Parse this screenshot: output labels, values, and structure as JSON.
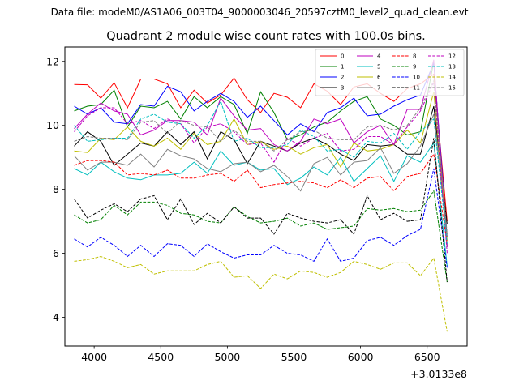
{
  "file_title": "Data file: modeM0/AS1A06_003T04_9000003046_20597cztM0_level2_quad_clean.evt",
  "chart_data": {
    "type": "line",
    "title": "Quadrant 2 module wise count rates with 100.0s bins.",
    "xlabel": "",
    "ylabel": "",
    "x_offset_label": "+3.0133e8",
    "xlim": [
      3780,
      6800
    ],
    "ylim": [
      3.1,
      12.45
    ],
    "xticks": [
      4000,
      4500,
      5000,
      5500,
      6000,
      6500
    ],
    "yticks": [
      4,
      6,
      8,
      10,
      12
    ],
    "x": [
      3850,
      3950,
      4050,
      4150,
      4250,
      4350,
      4450,
      4550,
      4650,
      4750,
      4850,
      4950,
      5050,
      5150,
      5250,
      5350,
      5450,
      5550,
      5650,
      5750,
      5850,
      5950,
      6050,
      6150,
      6250,
      6350,
      6450,
      6550,
      6650
    ],
    "series": [
      {
        "name": "0",
        "color": "#ff0000",
        "dash": "solid",
        "values": [
          11.28,
          11.27,
          10.85,
          11.33,
          10.55,
          11.45,
          11.45,
          11.3,
          10.55,
          11.1,
          10.7,
          10.95,
          11.48,
          10.8,
          10.4,
          11.0,
          10.88,
          10.55,
          11.3,
          11.07,
          10.65,
          11.2,
          11.3,
          11.0,
          10.75,
          11.15,
          11.3,
          11.6,
          7.0
        ]
      },
      {
        "name": "1",
        "color": "#008000",
        "dash": "solid",
        "values": [
          10.45,
          10.6,
          10.65,
          11.1,
          9.95,
          10.6,
          10.55,
          10.75,
          10.2,
          10.9,
          10.55,
          10.9,
          10.65,
          9.75,
          11.05,
          10.4,
          9.55,
          9.7,
          9.95,
          10.1,
          10.45,
          10.75,
          10.9,
          10.2,
          10.0,
          9.7,
          9.8,
          12.0,
          6.2
        ]
      },
      {
        "name": "2",
        "color": "#0000ff",
        "dash": "solid",
        "values": [
          10.6,
          10.35,
          10.55,
          10.1,
          10.05,
          10.65,
          10.6,
          11.22,
          11.05,
          10.45,
          10.75,
          11.0,
          10.75,
          10.25,
          10.6,
          10.15,
          9.7,
          10.05,
          9.8,
          10.4,
          10.55,
          10.85,
          10.3,
          10.35,
          10.6,
          10.8,
          10.95,
          11.95,
          6.5
        ]
      },
      {
        "name": "3",
        "color": "#000000",
        "dash": "solid",
        "values": [
          9.35,
          9.8,
          9.5,
          8.75,
          9.1,
          9.45,
          9.35,
          9.8,
          9.4,
          9.8,
          8.95,
          9.8,
          9.55,
          8.8,
          9.5,
          9.35,
          9.2,
          9.45,
          9.6,
          9.4,
          9.1,
          8.9,
          9.4,
          9.35,
          9.4,
          9.1,
          9.1,
          10.6,
          6.9
        ]
      },
      {
        "name": "4",
        "color": "#bf00bf",
        "dash": "solid",
        "values": [
          9.9,
          10.35,
          10.7,
          10.45,
          10.35,
          9.7,
          9.85,
          10.15,
          10.15,
          10.1,
          9.7,
          10.85,
          10.3,
          9.85,
          9.9,
          9.4,
          9.2,
          9.5,
          10.2,
          10.05,
          10.2,
          9.45,
          9.8,
          10.0,
          9.4,
          10.5,
          10.5,
          12.05,
          6.2
        ]
      },
      {
        "name": "5",
        "color": "#00bfbf",
        "dash": "solid",
        "values": [
          8.65,
          8.45,
          8.85,
          8.55,
          8.35,
          8.3,
          8.45,
          8.45,
          8.5,
          8.85,
          8.5,
          9.2,
          8.75,
          8.85,
          8.6,
          8.65,
          8.15,
          8.35,
          8.7,
          8.45,
          9.0,
          8.25,
          8.65,
          9.05,
          8.25,
          9.05,
          8.85,
          9.45,
          5.6
        ]
      },
      {
        "name": "6",
        "color": "#bfbf00",
        "dash": "solid",
        "values": [
          9.2,
          9.15,
          9.6,
          9.55,
          9.95,
          9.5,
          9.35,
          9.6,
          9.25,
          9.75,
          9.4,
          9.5,
          10.2,
          9.4,
          9.5,
          9.25,
          9.35,
          9.1,
          9.3,
          9.4,
          8.7,
          9.45,
          9.2,
          9.25,
          9.4,
          9.85,
          9.45,
          11.05,
          6.4
        ]
      },
      {
        "name": "7",
        "color": "#808080",
        "dash": "solid",
        "values": [
          9.05,
          8.6,
          8.85,
          8.85,
          8.75,
          9.1,
          8.7,
          9.25,
          9.05,
          8.95,
          8.65,
          8.55,
          8.8,
          8.85,
          8.55,
          8.75,
          8.4,
          7.95,
          8.8,
          9.0,
          8.45,
          8.85,
          8.9,
          9.3,
          8.5,
          8.8,
          9.35,
          10.35,
          6.5
        ]
      },
      {
        "name": "8",
        "color": "#ff0000",
        "dash": "dashed",
        "values": [
          8.75,
          8.9,
          8.9,
          8.85,
          8.45,
          8.5,
          8.45,
          8.6,
          8.35,
          8.35,
          8.45,
          8.5,
          8.25,
          8.6,
          8.05,
          8.15,
          8.2,
          8.25,
          8.2,
          8.05,
          8.3,
          8.05,
          8.35,
          8.4,
          7.95,
          8.4,
          8.5,
          9.1,
          6.3
        ]
      },
      {
        "name": "9",
        "color": "#008000",
        "dash": "dashed",
        "values": [
          7.2,
          6.95,
          7.05,
          7.5,
          7.2,
          7.6,
          7.6,
          7.5,
          7.25,
          7.2,
          7.0,
          6.95,
          7.45,
          7.15,
          6.95,
          7.0,
          7.1,
          6.85,
          6.95,
          6.75,
          6.8,
          6.85,
          7.4,
          7.35,
          7.4,
          7.3,
          7.35,
          7.95,
          5.1
        ]
      },
      {
        "name": "10",
        "color": "#0000ff",
        "dash": "dashed",
        "values": [
          6.45,
          6.2,
          6.5,
          6.25,
          5.9,
          6.25,
          5.9,
          6.3,
          6.25,
          5.9,
          6.3,
          6.05,
          5.85,
          5.95,
          5.95,
          6.25,
          6.0,
          5.95,
          5.75,
          6.45,
          5.75,
          5.85,
          6.4,
          6.5,
          6.25,
          6.55,
          6.75,
          8.65,
          5.55
        ]
      },
      {
        "name": "11",
        "color": "#000000",
        "dash": "dashed",
        "values": [
          7.7,
          7.1,
          7.35,
          7.55,
          7.3,
          7.7,
          7.8,
          7.05,
          7.7,
          6.9,
          7.25,
          6.95,
          7.45,
          7.1,
          7.1,
          6.6,
          7.25,
          7.1,
          7.0,
          6.95,
          7.05,
          6.6,
          7.8,
          7.05,
          7.25,
          7.0,
          7.05,
          9.6,
          5.1
        ]
      },
      {
        "name": "12",
        "color": "#bf00bf",
        "dash": "dashed",
        "values": [
          9.8,
          10.3,
          10.55,
          10.55,
          10.05,
          10.15,
          9.9,
          10.2,
          10.05,
          9.45,
          9.95,
          10.05,
          9.8,
          9.4,
          9.45,
          8.85,
          9.6,
          9.35,
          9.6,
          9.75,
          9.2,
          9.25,
          9.65,
          9.65,
          9.4,
          9.95,
          10.45,
          11.35,
          6.0
        ]
      },
      {
        "name": "13",
        "color": "#00bfbf",
        "dash": "dashed",
        "values": [
          10.0,
          9.5,
          9.55,
          9.6,
          9.6,
          10.2,
          10.35,
          10.1,
          10.05,
          9.6,
          10.0,
          10.75,
          9.5,
          9.6,
          9.3,
          9.3,
          9.4,
          9.85,
          9.65,
          9.2,
          9.25,
          9.0,
          9.5,
          9.45,
          9.75,
          9.25,
          9.8,
          10.2,
          6.3
        ]
      },
      {
        "name": "14",
        "color": "#bfbf00",
        "dash": "dashed",
        "values": [
          5.75,
          5.8,
          5.9,
          5.75,
          5.55,
          5.65,
          5.35,
          5.45,
          5.45,
          5.45,
          5.65,
          5.75,
          5.25,
          5.3,
          4.9,
          5.35,
          5.2,
          5.45,
          5.4,
          5.25,
          5.4,
          5.75,
          5.65,
          5.5,
          5.7,
          5.7,
          5.3,
          5.85,
          3.55
        ]
      },
      {
        "name": "15",
        "color": "#808080",
        "dash": "dashed",
        "values": [
          9.5,
          9.65,
          9.6,
          9.6,
          9.55,
          10.1,
          10.15,
          9.75,
          10.15,
          10.0,
          9.95,
          9.5,
          9.85,
          9.5,
          9.5,
          9.2,
          9.55,
          9.8,
          9.85,
          9.6,
          9.55,
          9.55,
          9.95,
          10.0,
          9.85,
          10.0,
          10.55,
          11.4,
          6.6
        ]
      }
    ]
  }
}
